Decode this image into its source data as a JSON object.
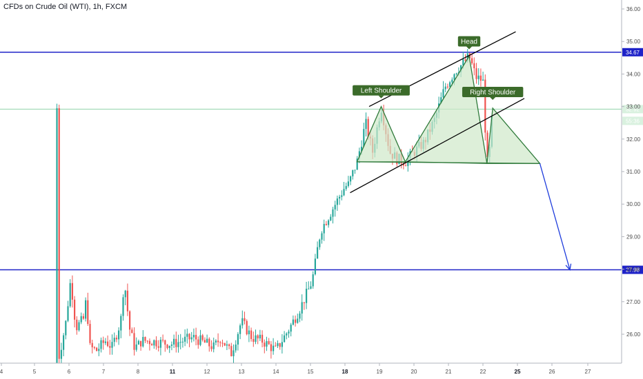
{
  "title": "CFDs on Crude Oil (WTI), 1h, FXCM",
  "colors": {
    "up": "#26a69a",
    "down": "#ef5350",
    "level_line": "#1e22c8",
    "price_line": "#8fd3a8",
    "pattern_fill": "#cfe8c9",
    "pattern_stroke": "#2f7a3a",
    "label_bg": "#3b6b2a",
    "projection": "#1e3cdc",
    "axis": "#4a4a4a"
  },
  "chart_data": {
    "type": "candlestick",
    "title": "CFDs on Crude Oil (WTI), 1h, FXCM",
    "ylim": [
      25.2,
      36.2
    ],
    "y_ticks": [
      "36.00",
      "35.00",
      "34.00",
      "33.00",
      "32.00",
      "31.00",
      "30.00",
      "29.00",
      "28.00",
      "27.00",
      "26.00"
    ],
    "x_ticks": [
      "4",
      "5",
      "6",
      "7",
      "8",
      "11",
      "12",
      "13",
      "14",
      "15",
      "18",
      "19",
      "20",
      "21",
      "22",
      "25",
      "26",
      "27"
    ],
    "x_bold": [
      "11",
      "18",
      "25"
    ],
    "price_tags": [
      {
        "label": "34.67",
        "value": 34.67,
        "style": "blue"
      },
      {
        "label": "32.92",
        "value": 32.92,
        "style": "green"
      },
      {
        "label": "55:36",
        "value": 32.56,
        "style": "green-light"
      },
      {
        "label": "27.98",
        "value": 27.98,
        "style": "blue"
      }
    ],
    "horizontal_levels": [
      {
        "value": 34.67,
        "kind": "resistance"
      },
      {
        "value": 27.98,
        "kind": "support"
      },
      {
        "value": 32.92,
        "kind": "last-price"
      }
    ],
    "pattern_labels": [
      {
        "text": "Left Shoulder"
      },
      {
        "text": "Head"
      },
      {
        "text": "Right Shoulder"
      }
    ],
    "pattern_points": {
      "left_base": [
        18.35,
        31.3
      ],
      "left_shoulder": [
        19.05,
        33.0
      ],
      "left_neck": [
        19.75,
        31.3
      ],
      "head": [
        21.6,
        34.55
      ],
      "right_neck": [
        22.35,
        31.25
      ],
      "right_shoulder": [
        22.85,
        32.95
      ],
      "right_base": [
        25.65,
        31.25
      ]
    },
    "channel": {
      "upper": [
        [
          18.7,
          33.0
        ],
        [
          24.85,
          35.3
        ]
      ],
      "lower": [
        [
          18.15,
          30.35
        ],
        [
          25.2,
          33.25
        ]
      ]
    },
    "projection": [
      [
        25.65,
        31.25
      ],
      [
        26.5,
        27.98
      ]
    ]
  }
}
